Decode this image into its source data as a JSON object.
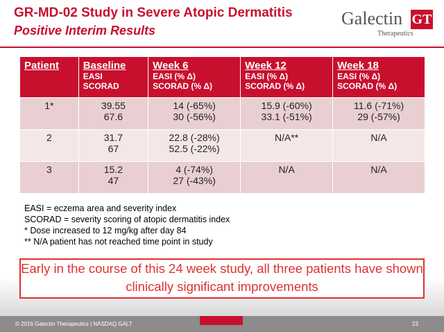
{
  "header": {
    "title": "GR-MD-02 Study in Severe Atopic Dermatitis",
    "subtitle": "Positive Interim Results"
  },
  "logo": {
    "name": "Galectin",
    "mark": "GT",
    "tagline": "Therapeutics"
  },
  "table": {
    "columns": [
      [
        "Patient"
      ],
      [
        "Baseline",
        "EASI",
        "SCORAD"
      ],
      [
        "Week 6",
        "EASI (% Δ)",
        "SCORAD (% Δ)"
      ],
      [
        "Week 12",
        "EASI (% Δ)",
        "SCORAD (% Δ)"
      ],
      [
        "Week 18",
        "EASI (% Δ)",
        "SCORAD (% Δ)"
      ]
    ],
    "rows": [
      [
        [
          "1*"
        ],
        [
          "39.55",
          "67.6"
        ],
        [
          "14 (-65%)",
          "30 (-56%)"
        ],
        [
          "15.9 (-60%)",
          "33.1 (-51%)"
        ],
        [
          "11.6 (-71%)",
          "29 (-57%)"
        ]
      ],
      [
        [
          "2"
        ],
        [
          "31.7",
          "67"
        ],
        [
          "22.8 (-28%)",
          "52.5 (-22%)"
        ],
        [
          "N/A**"
        ],
        [
          "N/A"
        ]
      ],
      [
        [
          "3"
        ],
        [
          "15.2",
          "47"
        ],
        [
          "4 (-74%)",
          "27 (-43%)"
        ],
        [
          "N/A"
        ],
        [
          "N/A"
        ]
      ]
    ]
  },
  "footnotes": [
    "EASI = eczema area and severity index",
    "SCORAD = severity scoring of atopic dermatitis index",
    "* Dose increased to 12 mg/kg after day 84",
    "** N/A patient has not reached time point in study"
  ],
  "callout": "Early in the course of this 24 week study, all three patients have shown clinically significant improvements",
  "footer": {
    "copyright": "© 2016 Galectin Therapeutics | NASDAQ GALT",
    "page": "23"
  }
}
